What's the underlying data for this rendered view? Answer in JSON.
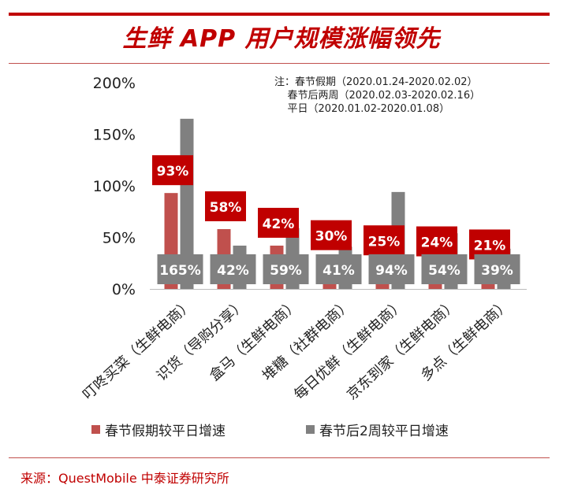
{
  "title": "生鲜 APP 用户规模涨幅领先",
  "note": {
    "lines": [
      "注：春节假期（2020.01.24-2020.02.02）",
      "    春节后两周（2020.02.03-2020.02.16）",
      "    平日（2020.01.02-2020.01.08）"
    ]
  },
  "source": "来源：QuestMobile 中泰证券研究所",
  "chart_data": {
    "type": "bar",
    "categories": [
      "叮咚买菜（生鲜电商）",
      "识货（导购分享）",
      "盒马（生鲜电商）",
      "堆糖（社群电商）",
      "每日优鲜（生鲜电商）",
      "京东到家（生鲜电商）",
      "多点（生鲜电商）"
    ],
    "series": [
      {
        "name": "春节假期较平日增速",
        "values": [
          93,
          58,
          42,
          30,
          25,
          24,
          21
        ],
        "color": "#c0504d",
        "label_color": "#c00000"
      },
      {
        "name": "春节后2周较平日增速",
        "values": [
          165,
          42,
          59,
          41,
          94,
          54,
          39
        ],
        "color": "#808080",
        "label_color": "#808080"
      }
    ],
    "ylim": [
      0,
      200
    ],
    "yticks": [
      "0%",
      "50%",
      "100%",
      "150%",
      "200%"
    ],
    "grid": false,
    "legend": "bottom"
  }
}
